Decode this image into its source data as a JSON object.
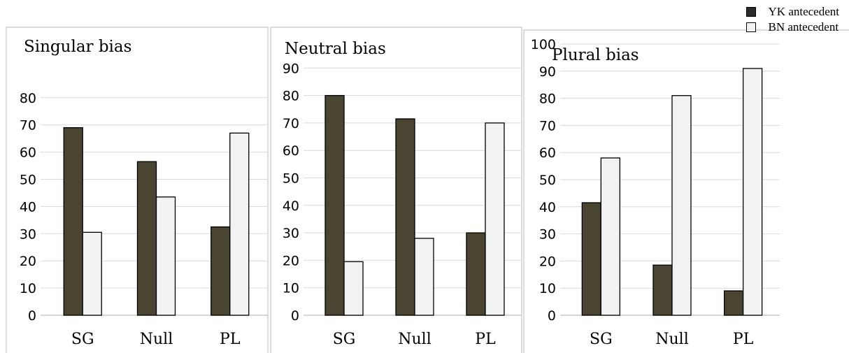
{
  "legend": {
    "items": [
      {
        "label": "YK antecedent",
        "color": "#2b2b2b"
      },
      {
        "label": "BN antecedent",
        "color": "#f2f2f2"
      }
    ]
  },
  "colors": {
    "yk_bar": "#4a4530",
    "bn_bar": "#f2f2f2",
    "grid": "#d9d9d9",
    "frame": "#d0d0d0"
  },
  "chart_data": [
    {
      "type": "bar",
      "title": "Singular bias",
      "categories": [
        "SG",
        "Null",
        "PL"
      ],
      "series": [
        {
          "name": "YK antecedent",
          "values": [
            69,
            56.5,
            32.5
          ]
        },
        {
          "name": "BN antecedent",
          "values": [
            30.5,
            43.5,
            67
          ]
        }
      ],
      "ylim": [
        0,
        80
      ],
      "yticks": [
        0,
        10,
        20,
        30,
        40,
        50,
        60,
        70,
        80
      ],
      "grid": true
    },
    {
      "type": "bar",
      "title": "Neutral bias",
      "categories": [
        "SG",
        "Null",
        "PL"
      ],
      "series": [
        {
          "name": "YK antecedent",
          "values": [
            80,
            71.5,
            30
          ]
        },
        {
          "name": "BN antecedent",
          "values": [
            19.5,
            28,
            70
          ]
        }
      ],
      "ylim": [
        0,
        90
      ],
      "yticks": [
        0,
        10,
        20,
        30,
        40,
        50,
        60,
        70,
        80,
        90
      ],
      "grid": true
    },
    {
      "type": "bar",
      "title": "Plural bias",
      "categories": [
        "SG",
        "Null",
        "PL"
      ],
      "series": [
        {
          "name": "YK antecedent",
          "values": [
            41.5,
            18.5,
            9
          ]
        },
        {
          "name": "BN antecedent",
          "values": [
            58,
            81,
            91
          ]
        }
      ],
      "ylim": [
        0,
        100
      ],
      "yticks": [
        0,
        10,
        20,
        30,
        40,
        50,
        60,
        70,
        80,
        90,
        100
      ],
      "grid": true
    }
  ]
}
